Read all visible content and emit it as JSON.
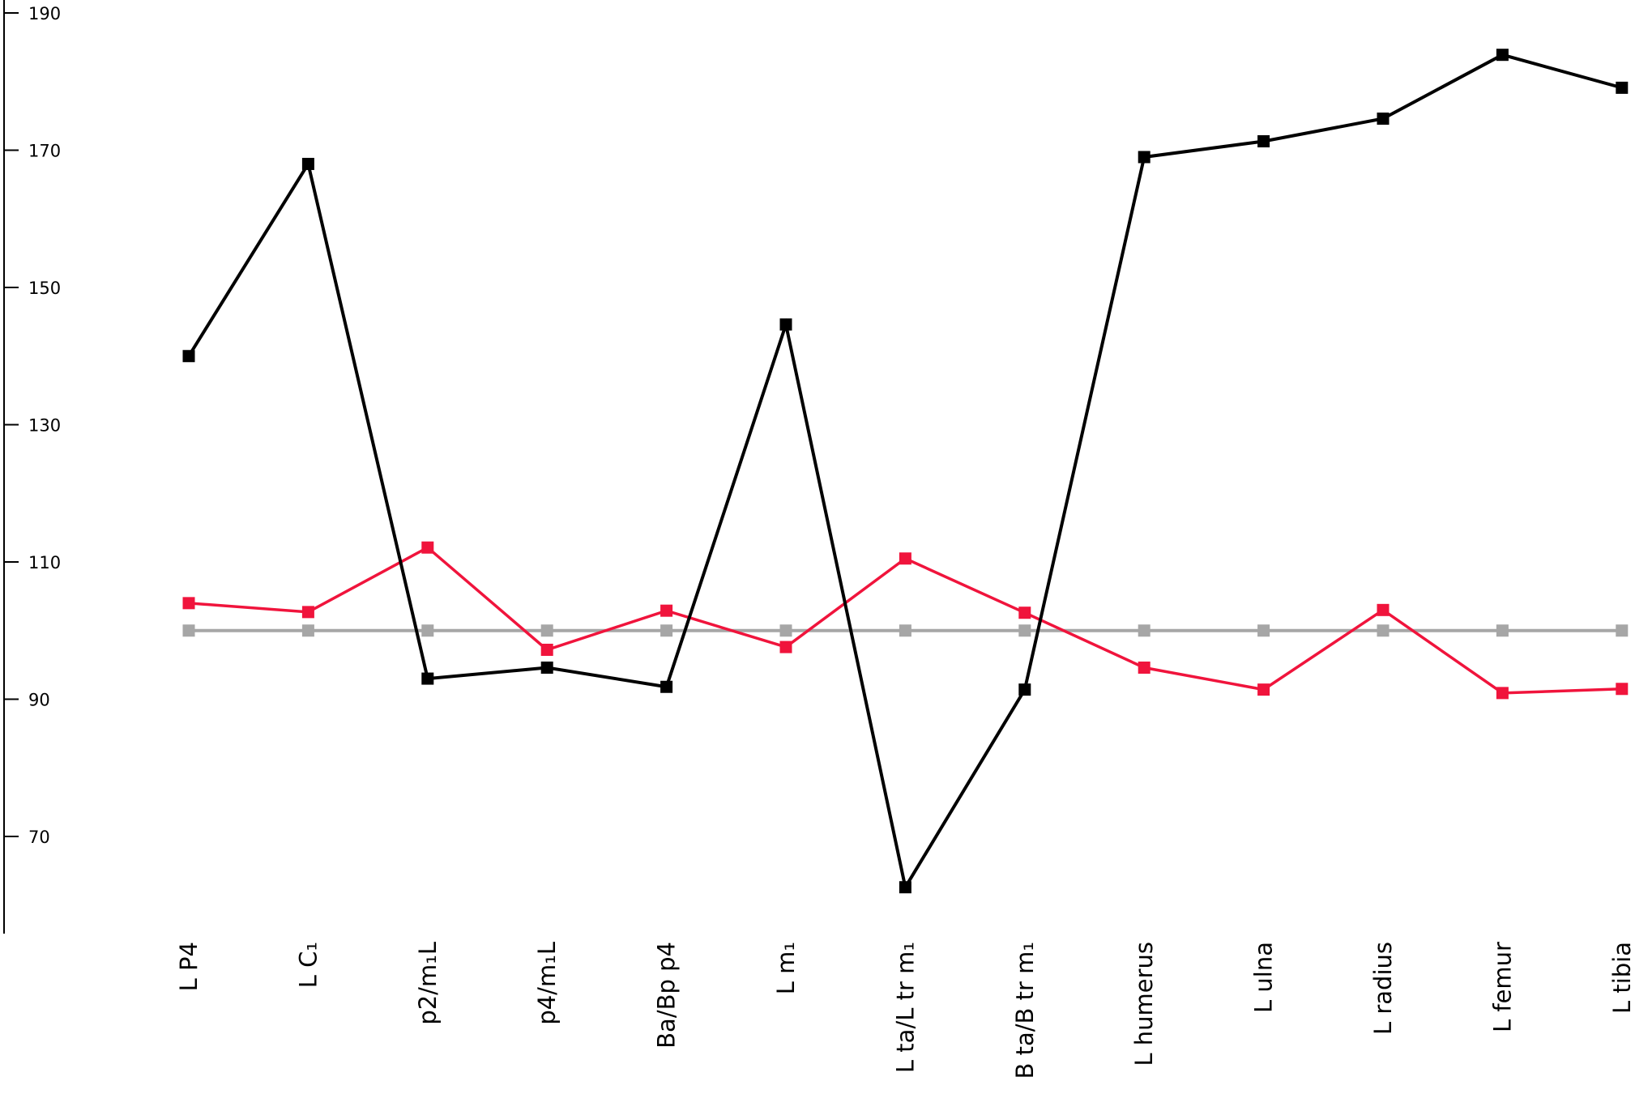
{
  "chart_data": {
    "type": "line",
    "title": "",
    "xlabel": "",
    "ylabel": "",
    "ylim": [
      56,
      191
    ],
    "yticks": [
      70,
      90,
      110,
      130,
      150,
      170,
      190
    ],
    "grid": false,
    "legend": "none",
    "categories": [
      "L P4",
      "L C₁",
      "p2/m₁L",
      "p4/m₁L",
      "Ba/Bp p4",
      "L m₁",
      "L ta/L tr m₁",
      "B ta/B tr m₁",
      "L humerus",
      "L ulna",
      "L radius",
      "L femur",
      "L tibia"
    ],
    "series": [
      {
        "color": "#000000",
        "values": [
          140,
          168,
          93,
          94.6,
          91.8,
          144.6,
          62.6,
          91.4,
          169,
          171.3,
          174.6,
          183.9,
          179.1
        ]
      },
      {
        "color": "#f0143c",
        "values": [
          104,
          102.7,
          112.1,
          97.2,
          102.9,
          97.6,
          110.5,
          102.6,
          94.6,
          91.4,
          103,
          90.9,
          91.5
        ]
      },
      {
        "color": "#a6a6a6",
        "values": [
          100,
          100,
          100,
          100,
          100,
          100,
          100,
          100,
          100,
          100,
          100,
          100,
          100
        ]
      }
    ]
  }
}
